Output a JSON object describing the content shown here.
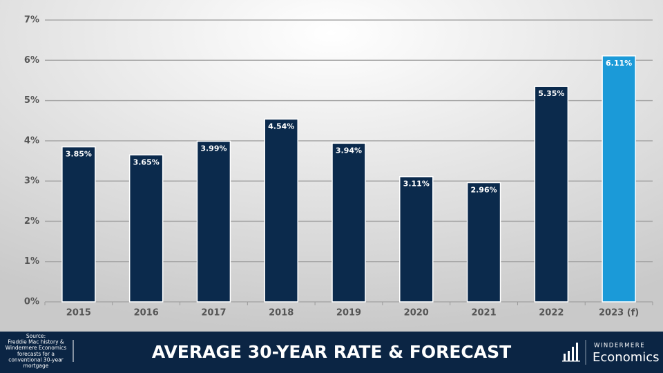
{
  "chart_data": {
    "type": "bar",
    "title": "AVERAGE 30-YEAR RATE & FORECAST",
    "categories": [
      "2015",
      "2016",
      "2017",
      "2018",
      "2019",
      "2020",
      "2021",
      "2022",
      "2023 (f)"
    ],
    "values": [
      3.85,
      3.65,
      3.99,
      4.54,
      3.94,
      3.11,
      2.96,
      5.35,
      6.11
    ],
    "value_labels": [
      "3.85%",
      "3.65%",
      "3.99%",
      "4.54%",
      "3.94%",
      "3.11%",
      "2.96%",
      "5.35%",
      "6.11%"
    ],
    "colors": [
      "#0b2a4c",
      "#0b2a4c",
      "#0b2a4c",
      "#0b2a4c",
      "#0b2a4c",
      "#0b2a4c",
      "#0b2a4c",
      "#0b2a4c",
      "#1b9ad8"
    ],
    "ylim": [
      0,
      7
    ],
    "yticks": [
      {
        "value": 0,
        "label": "0%"
      },
      {
        "value": 1,
        "label": "1%"
      },
      {
        "value": 2,
        "label": "2%"
      },
      {
        "value": 3,
        "label": "3%"
      },
      {
        "value": 4,
        "label": "4%"
      },
      {
        "value": 5,
        "label": "5%"
      },
      {
        "value": 6,
        "label": "6%"
      },
      {
        "value": 7,
        "label": "7%"
      }
    ],
    "grid": true,
    "source": [
      "Source:",
      "Freddie Mac history &",
      "Windermere Economics",
      "forecasts for a",
      "conventional 30-year",
      "mortgage"
    ]
  },
  "branding": {
    "name": "WINDERMERE",
    "product": "Economics"
  }
}
